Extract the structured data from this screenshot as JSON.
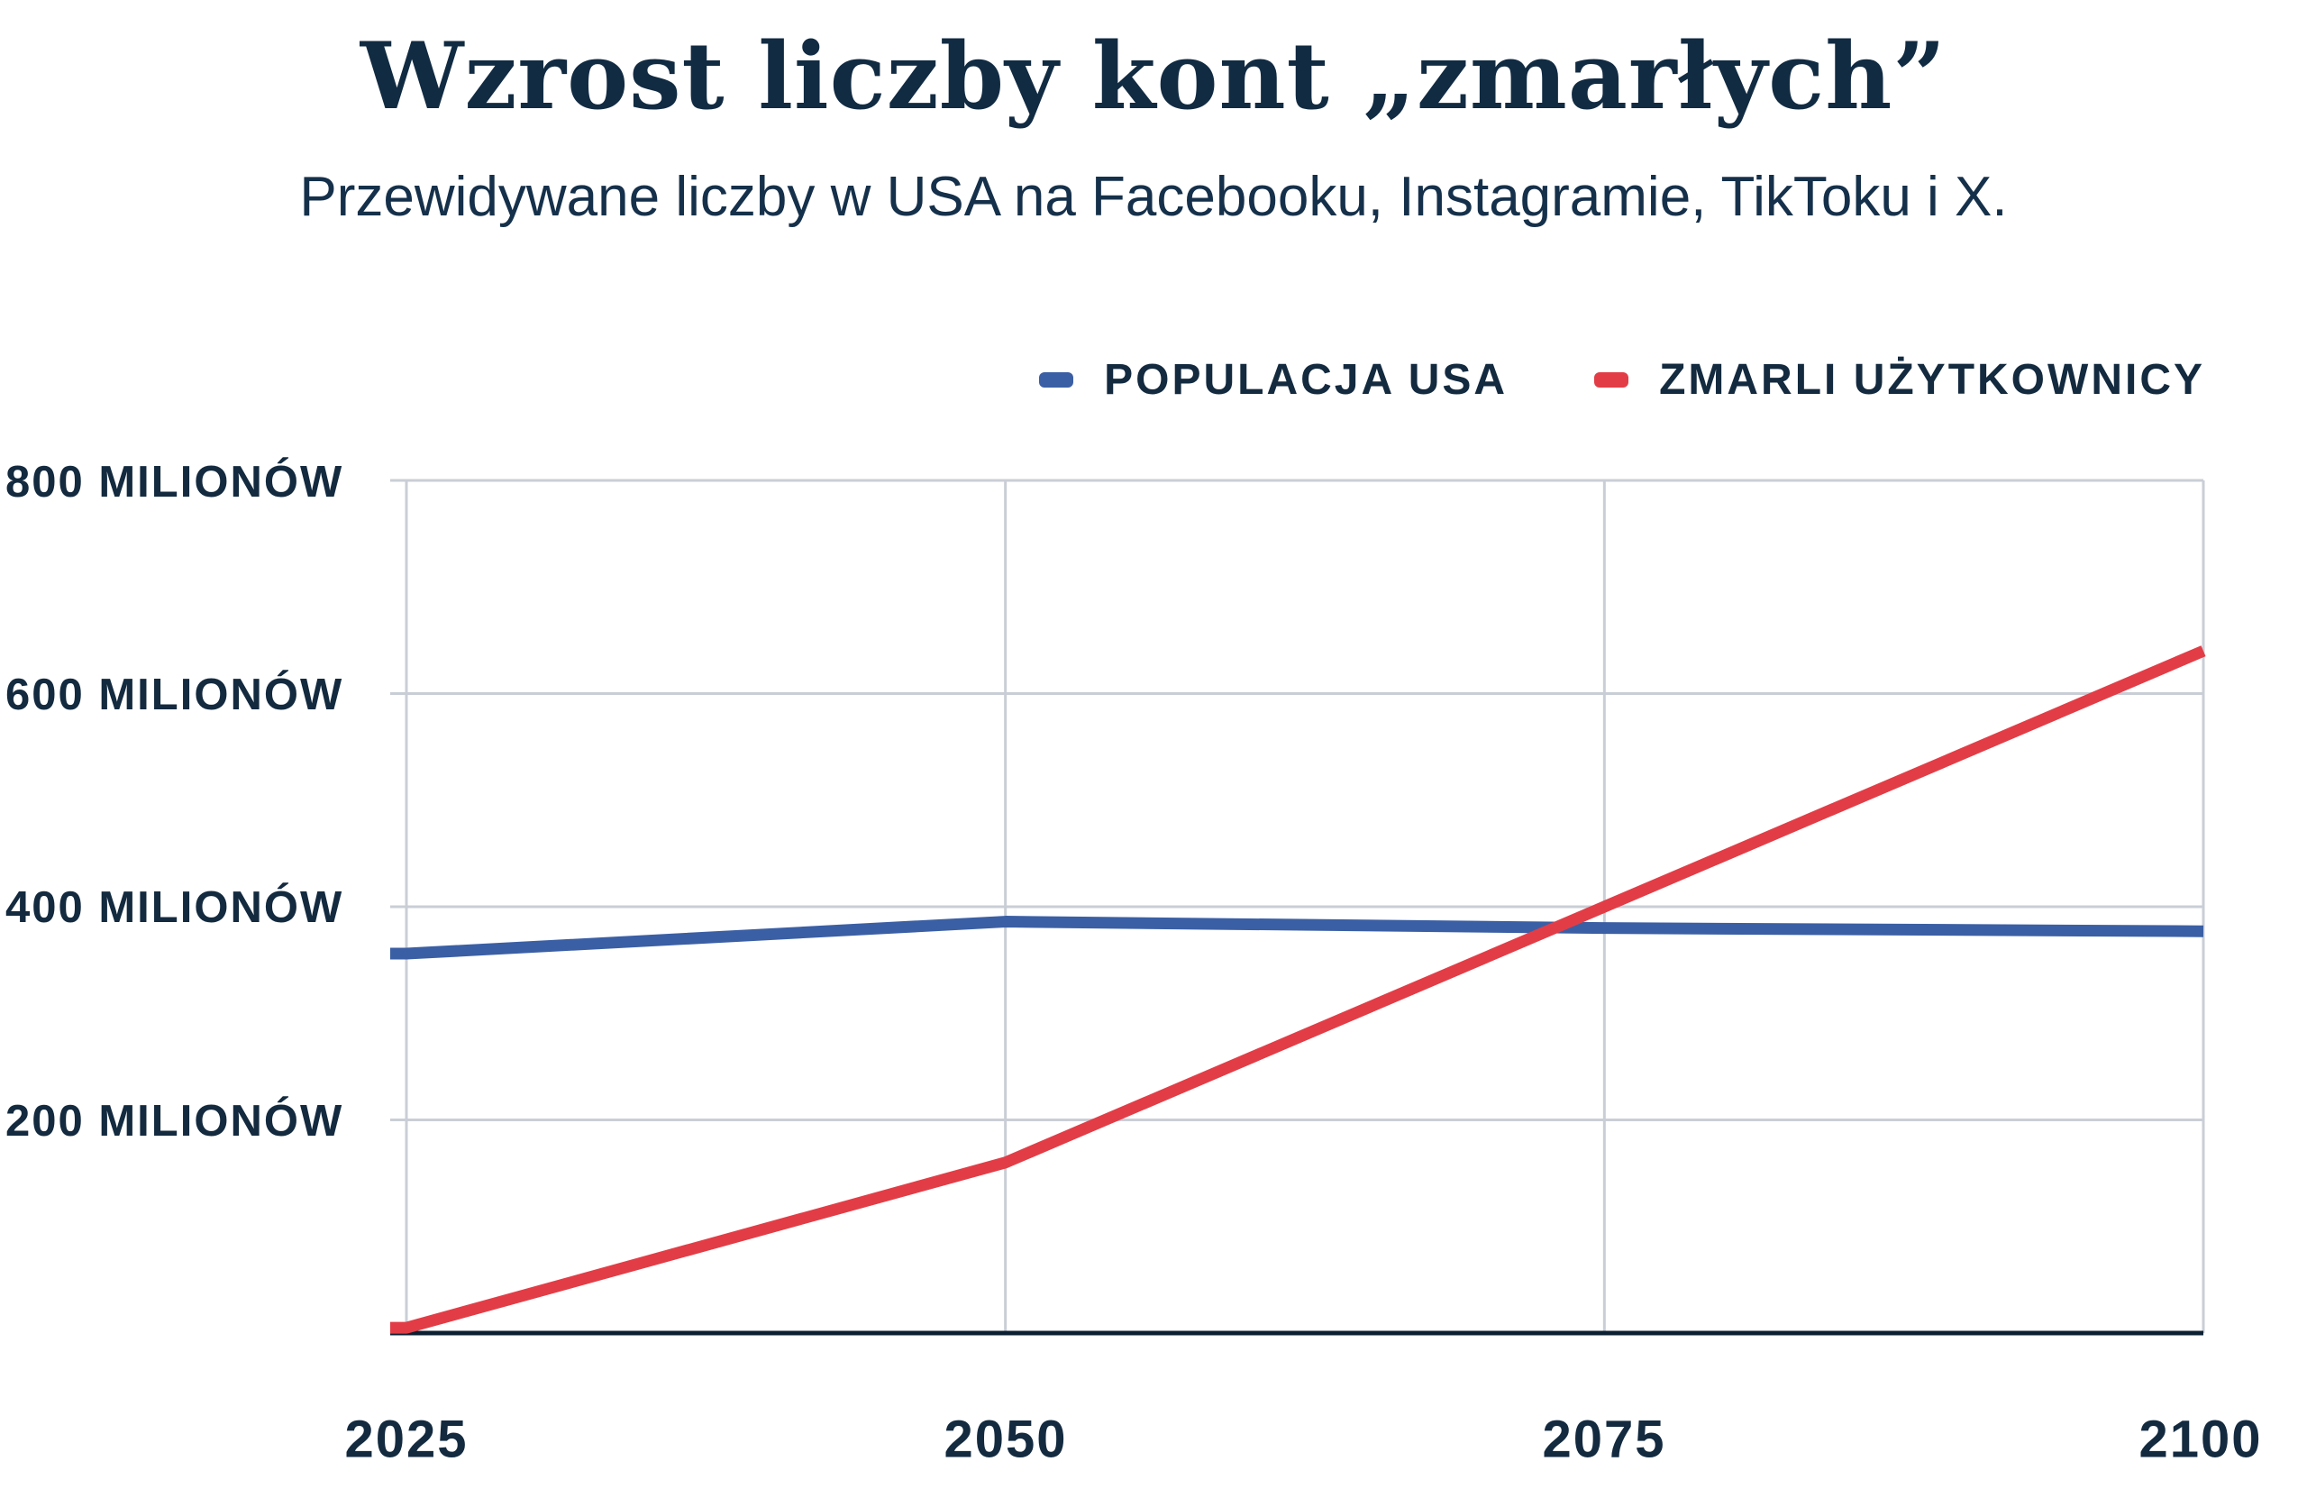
{
  "header": {
    "title": "Wzrost liczby kont „zmarłych”",
    "subtitle": "Przewidywane liczby w USA na Facebooku, Instagramie, TikToku i X."
  },
  "legend": [
    {
      "label": "POPULACJA USA",
      "color": "#3b5fa4"
    },
    {
      "label": "ZMARLI UŻYTKOWNICY",
      "color": "#e23d46"
    }
  ],
  "colors": {
    "text_navy": "#132a3f",
    "title_navy": "#112b42",
    "grid_gray": "#c9ced6",
    "axis_navy": "#0c2033",
    "population_blue": "#3b5fa4",
    "deceased_red": "#e23d46",
    "background": "#ffffff"
  },
  "chart_data": {
    "type": "line",
    "title": "Wzrost liczby kont „zmarłych”",
    "subtitle": "Przewidywane liczby w USA na Facebooku, Instagramie, TikToku i X.",
    "x": [
      2025,
      2050,
      2075,
      2100
    ],
    "x_tick_labels": [
      "2025",
      "2050",
      "2075",
      "2100"
    ],
    "xlabel": "",
    "ylabel": "",
    "ylim": [
      0,
      800
    ],
    "y_ticks": [
      200,
      400,
      600,
      800
    ],
    "y_tick_labels": [
      "200 MILIONÓW",
      "400 MILIONÓW",
      "600 MILIONÓW",
      "800 MILIONÓW"
    ],
    "y_unit": "MILIONÓW",
    "grid": true,
    "legend_position": "top-right",
    "series": [
      {
        "name": "POPULACJA USA",
        "color": "#3b5fa4",
        "values": [
          356,
          386,
          380,
          377
        ]
      },
      {
        "name": "ZMARLI UŻYTKOWNICY",
        "color": "#e23d46",
        "values": [
          5,
          160,
          400,
          640
        ]
      }
    ]
  }
}
